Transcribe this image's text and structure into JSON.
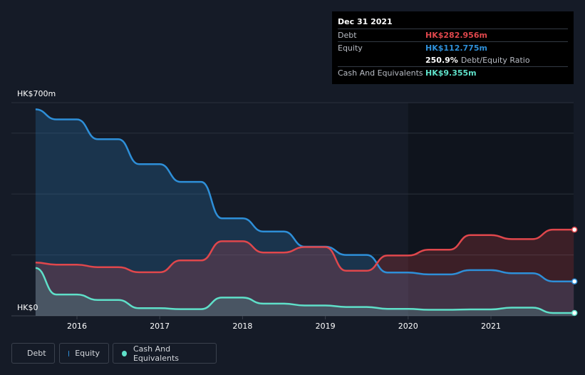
{
  "tooltip": {
    "date": "Dec 31 2021",
    "debt_label": "Debt",
    "debt_value": "HK$282.956m",
    "equity_label": "Equity",
    "equity_value": "HK$112.775m",
    "ratio_value": "250.9%",
    "ratio_label": "Debt/Equity Ratio",
    "cash_label": "Cash And Equivalents",
    "cash_value": "HK$9.355m"
  },
  "legend": {
    "debt": "Debt",
    "equity": "Equity",
    "cash": "Cash And Equivalents"
  },
  "colors": {
    "background": "#151b27",
    "debt": "#e0474c",
    "equity": "#2e8fd8",
    "cash": "#5fe0c9"
  },
  "chart_data": {
    "type": "area",
    "y_unit": "HK$m",
    "ylim": [
      0,
      700
    ],
    "y_labels": [
      "HK$700m",
      "HK$0"
    ],
    "x_ticks": [
      2016,
      2017,
      2018,
      2019,
      2020,
      2021
    ],
    "grid": true,
    "legend_position": "bottom-left",
    "series": [
      {
        "name": "Debt",
        "points": [
          [
            2015.5,
            175
          ],
          [
            2015.75,
            168
          ],
          [
            2016.0,
            168
          ],
          [
            2016.25,
            160
          ],
          [
            2016.5,
            160
          ],
          [
            2016.75,
            143
          ],
          [
            2017.0,
            143
          ],
          [
            2017.25,
            182
          ],
          [
            2017.5,
            182
          ],
          [
            2017.75,
            245
          ],
          [
            2018.0,
            245
          ],
          [
            2018.25,
            208
          ],
          [
            2018.5,
            208
          ],
          [
            2018.75,
            226
          ],
          [
            2019.0,
            226
          ],
          [
            2019.25,
            148
          ],
          [
            2019.5,
            148
          ],
          [
            2019.75,
            198
          ],
          [
            2020.0,
            198
          ],
          [
            2020.25,
            217
          ],
          [
            2020.5,
            217
          ],
          [
            2020.75,
            265
          ],
          [
            2021.0,
            265
          ],
          [
            2021.25,
            252
          ],
          [
            2021.5,
            252
          ],
          [
            2021.75,
            283
          ],
          [
            2022.0,
            283
          ]
        ]
      },
      {
        "name": "Equity",
        "points": [
          [
            2015.5,
            678
          ],
          [
            2015.75,
            645
          ],
          [
            2016.0,
            645
          ],
          [
            2016.25,
            580
          ],
          [
            2016.5,
            580
          ],
          [
            2016.75,
            498
          ],
          [
            2017.0,
            498
          ],
          [
            2017.25,
            440
          ],
          [
            2017.5,
            440
          ],
          [
            2017.75,
            320
          ],
          [
            2018.0,
            320
          ],
          [
            2018.25,
            277
          ],
          [
            2018.5,
            277
          ],
          [
            2018.75,
            227
          ],
          [
            2019.0,
            227
          ],
          [
            2019.25,
            200
          ],
          [
            2019.5,
            200
          ],
          [
            2019.75,
            142
          ],
          [
            2020.0,
            142
          ],
          [
            2020.25,
            136
          ],
          [
            2020.5,
            136
          ],
          [
            2020.75,
            150
          ],
          [
            2021.0,
            150
          ],
          [
            2021.25,
            140
          ],
          [
            2021.5,
            140
          ],
          [
            2021.75,
            113
          ],
          [
            2022.0,
            113
          ]
        ]
      },
      {
        "name": "Cash And Equivalents",
        "points": [
          [
            2015.5,
            157
          ],
          [
            2015.75,
            70
          ],
          [
            2016.0,
            70
          ],
          [
            2016.25,
            52
          ],
          [
            2016.5,
            52
          ],
          [
            2016.75,
            25
          ],
          [
            2017.0,
            25
          ],
          [
            2017.25,
            22
          ],
          [
            2017.5,
            22
          ],
          [
            2017.75,
            60
          ],
          [
            2018.0,
            60
          ],
          [
            2018.25,
            40
          ],
          [
            2018.5,
            40
          ],
          [
            2018.75,
            34
          ],
          [
            2019.0,
            34
          ],
          [
            2019.25,
            29
          ],
          [
            2019.5,
            29
          ],
          [
            2019.75,
            23
          ],
          [
            2020.0,
            23
          ],
          [
            2020.25,
            20
          ],
          [
            2020.5,
            20
          ],
          [
            2020.75,
            21
          ],
          [
            2021.0,
            21
          ],
          [
            2021.25,
            27
          ],
          [
            2021.5,
            27
          ],
          [
            2021.75,
            9.4
          ],
          [
            2022.0,
            9.4
          ]
        ]
      }
    ]
  }
}
